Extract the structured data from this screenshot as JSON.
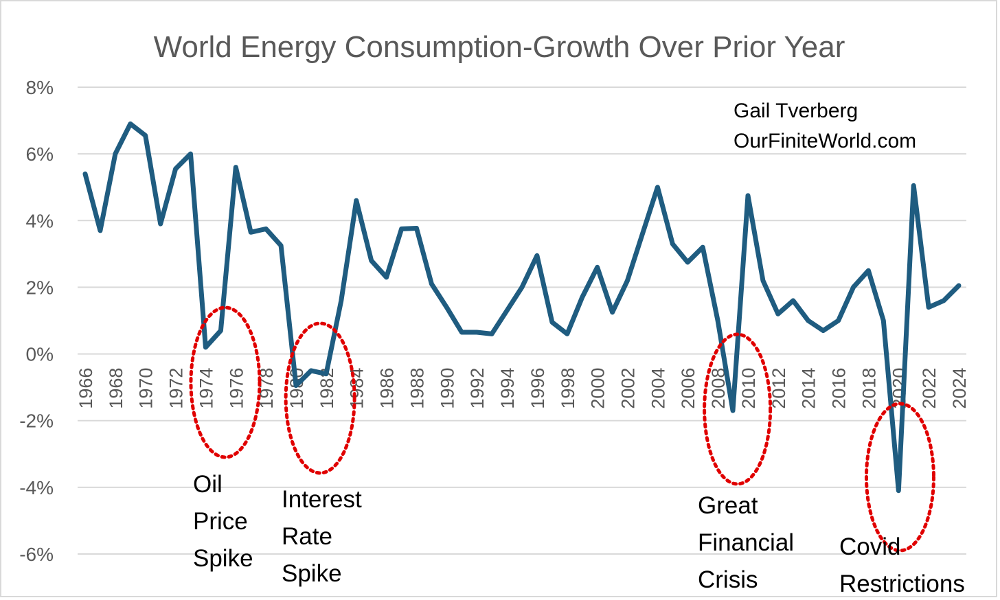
{
  "chart_data": {
    "type": "line",
    "title": "World Energy Consumption-Growth Over Prior Year",
    "xlabel": "",
    "ylabel": "",
    "ylim": [
      -6,
      8
    ],
    "y_ticks": [
      8,
      6,
      4,
      2,
      0,
      -2,
      -4,
      -6
    ],
    "y_tick_labels": [
      "8%",
      "6%",
      "4%",
      "2%",
      "0%",
      "-2%",
      "-4%",
      "-6%"
    ],
    "x_tick_labels": [
      "1966",
      "1968",
      "1970",
      "1972",
      "1974",
      "1976",
      "1978",
      "1980",
      "1982",
      "1984",
      "1986",
      "1988",
      "1990",
      "1992",
      "1994",
      "1996",
      "1998",
      "2000",
      "2002",
      "2004",
      "2006",
      "2008",
      "2010",
      "2012",
      "2014",
      "2016",
      "2018",
      "2020",
      "2022",
      "2024"
    ],
    "grid": "horizontal",
    "line_color": "#1f5c80",
    "x": [
      1966,
      1967,
      1968,
      1969,
      1970,
      1971,
      1972,
      1973,
      1974,
      1975,
      1976,
      1977,
      1978,
      1979,
      1980,
      1981,
      1982,
      1983,
      1984,
      1985,
      1986,
      1987,
      1988,
      1989,
      1990,
      1991,
      1992,
      1993,
      1994,
      1995,
      1996,
      1997,
      1998,
      1999,
      2000,
      2001,
      2002,
      2003,
      2004,
      2005,
      2006,
      2007,
      2008,
      2009,
      2010,
      2011,
      2012,
      2013,
      2014,
      2015,
      2016,
      2017,
      2018,
      2019,
      2020,
      2021,
      2022,
      2023,
      2024
    ],
    "series": [
      {
        "values": [
          5.4,
          3.7,
          6.0,
          6.9,
          6.55,
          3.9,
          5.55,
          6.0,
          0.2,
          0.7,
          5.6,
          3.65,
          3.75,
          3.25,
          -0.95,
          -0.5,
          -0.6,
          1.6,
          4.6,
          2.8,
          2.3,
          3.75,
          3.77,
          2.1,
          1.4,
          0.65,
          0.65,
          0.6,
          1.3,
          2.0,
          2.95,
          0.95,
          0.6,
          1.7,
          2.6,
          1.25,
          2.2,
          3.6,
          5.0,
          3.3,
          2.75,
          3.2,
          1.0,
          -1.7,
          4.75,
          2.2,
          1.2,
          1.6,
          1.0,
          0.7,
          1.0,
          2.0,
          2.5,
          1.0,
          -4.1,
          5.05,
          1.4,
          1.6,
          2.05
        ]
      }
    ]
  },
  "credit": {
    "author": "Gail Tverberg",
    "website": "OurFiniteWorld.com"
  },
  "annotations": [
    {
      "id": "oil",
      "lines": [
        "Oil",
        "Price",
        "Spike"
      ],
      "color": "#e00000"
    },
    {
      "id": "interest",
      "lines": [
        "Interest",
        "Rate",
        "Spike"
      ],
      "color": "#e00000"
    },
    {
      "id": "gfc",
      "lines": [
        "Great",
        "Financial",
        "Crisis"
      ],
      "color": "#e00000"
    },
    {
      "id": "covid",
      "lines": [
        "Covid",
        "Restrictions"
      ],
      "color": "#e00000"
    }
  ]
}
